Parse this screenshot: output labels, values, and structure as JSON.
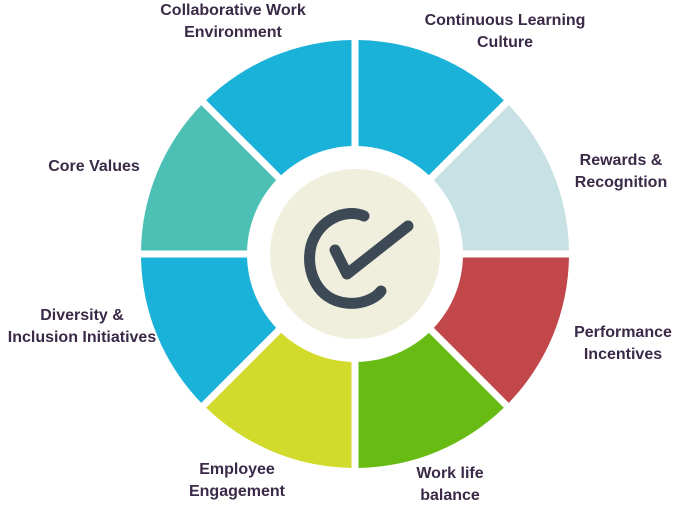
{
  "segments": [
    {
      "lines": [
        "Continuous Learning",
        "Culture"
      ],
      "color": "#1ab2d9"
    },
    {
      "lines": [
        "Rewards &",
        "Recognition"
      ],
      "color": "#c8e1e4"
    },
    {
      "lines": [
        "Performance",
        "Incentives"
      ],
      "color": "#c2474b"
    },
    {
      "lines": [
        "Work life",
        "balance"
      ],
      "color": "#67bb12"
    },
    {
      "lines": [
        "Employee",
        "Engagement"
      ],
      "color": "#d2da2c"
    },
    {
      "lines": [
        "Diversity &",
        "Inclusion Initiatives"
      ],
      "color": "#1ab2d9"
    },
    {
      "lines": [
        "Core Values"
      ],
      "color": "#4cc0b5"
    },
    {
      "lines": [
        "Collaborative Work",
        "Environment"
      ],
      "color": "#1ab2d9"
    }
  ],
  "center": {
    "icon": "checkmark-icon",
    "fill": "#f0efde",
    "stroke": "#3d4a55"
  }
}
